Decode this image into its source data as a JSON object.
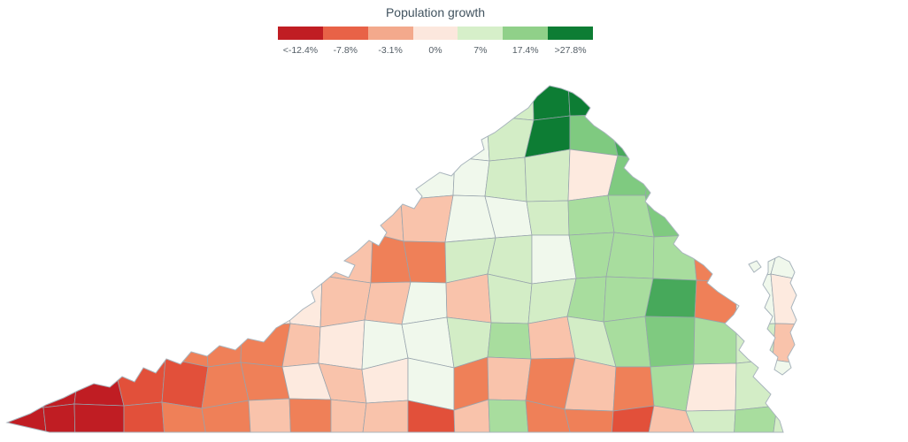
{
  "legend": {
    "title": "Population growth",
    "swatches": [
      "#c01d23",
      "#e86247",
      "#f3a98c",
      "#fce7dd",
      "#d6efc9",
      "#90d089",
      "#0d7d34"
    ],
    "labels": [
      "<-12.4%",
      "-7.8%",
      "-3.1%",
      "0%",
      "7%",
      "17.4%",
      ">27.8%"
    ]
  },
  "map": {
    "name": "Virginia counties population-growth choropleth",
    "palette": {
      "1": "#c01d23",
      "2": "#e2503a",
      "3": "#ef8058",
      "4": "#f9c3ab",
      "5": "#fdeadf",
      "6": "#f0f8ec",
      "7": "#d3edc6",
      "8": "#a8dd9e",
      "9": "#7fca80",
      "A": "#47a95b",
      "B": "#0d7d34"
    },
    "grid_rows": [
      "6666666666667BBAAAAA",
      "6666666666667B9A9999",
      "66666666666677599999",
      "44444444444667889999",
      "33333333433776888366",
      "5555555544647788A365",
      "33333334566784789874",
      "11122335456343438576",
      "11123343442483324787"
    ],
    "border_color": "#97a3ac",
    "outline_color": "#a9b5bd"
  },
  "colors": {
    "background": "#ffffff",
    "title_text": "#41535f",
    "label_text": "#525c64"
  }
}
